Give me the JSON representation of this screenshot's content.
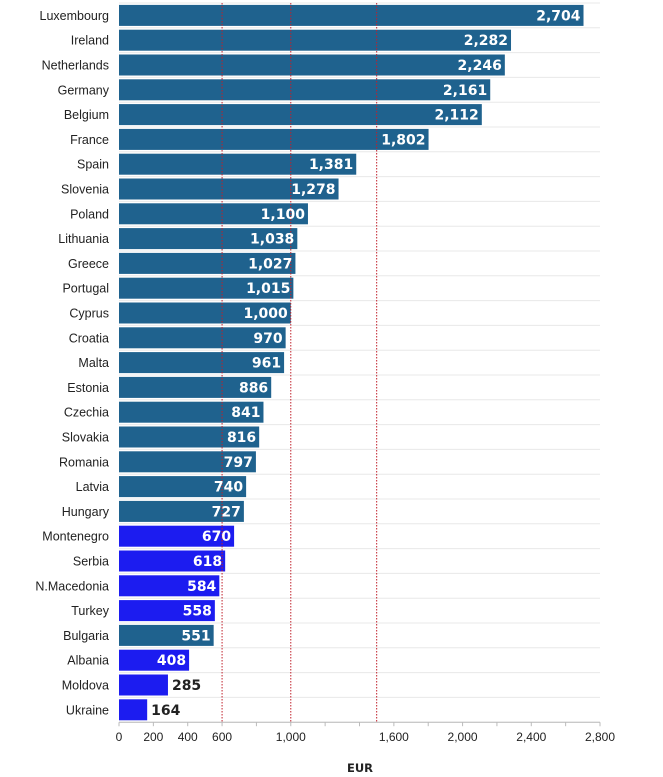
{
  "chart_data": {
    "type": "bar",
    "orientation": "horizontal",
    "xlabel": "EUR",
    "xlim": [
      0,
      2800
    ],
    "x_ticks": [
      0,
      200,
      400,
      600,
      1000,
      1600,
      2000,
      2400,
      2800
    ],
    "x_tick_labels": [
      "0",
      "200",
      "400",
      "600",
      "1,000",
      "1,600",
      "2,000",
      "2,400",
      "2,800"
    ],
    "reference_lines": [
      600,
      1000,
      1500
    ],
    "reference_line_color": "#c0202a",
    "grid": "horizontal row lines",
    "colors": {
      "eu": "#1f628e",
      "candidate": "#1c1cf0"
    },
    "categories": [
      "Luxembourg",
      "Ireland",
      "Netherlands",
      "Germany",
      "Belgium",
      "France",
      "Spain",
      "Slovenia",
      "Poland",
      "Lithuania",
      "Greece",
      "Portugal",
      "Cyprus",
      "Croatia",
      "Malta",
      "Estonia",
      "Czechia",
      "Slovakia",
      "Romania",
      "Latvia",
      "Hungary",
      "Montenegro",
      "Serbia",
      "N.Macedonia",
      "Turkey",
      "Bulgaria",
      "Albania",
      "Moldova",
      "Ukraine"
    ],
    "values": [
      2704,
      2282,
      2246,
      2161,
      2112,
      1802,
      1381,
      1278,
      1100,
      1038,
      1027,
      1015,
      1000,
      970,
      961,
      886,
      841,
      816,
      797,
      740,
      727,
      670,
      618,
      584,
      558,
      551,
      408,
      285,
      164
    ],
    "value_labels": [
      "2,704",
      "2,282",
      "2,246",
      "2,161",
      "2,112",
      "1,802",
      "1,381",
      "1,278",
      "1,100",
      "1,038",
      "1,027",
      "1,015",
      "1,000",
      "970",
      "961",
      "886",
      "841",
      "816",
      "797",
      "740",
      "727",
      "670",
      "618",
      "584",
      "558",
      "551",
      "408",
      "285",
      "164"
    ],
    "bar_group": [
      "eu",
      "eu",
      "eu",
      "eu",
      "eu",
      "eu",
      "eu",
      "eu",
      "eu",
      "eu",
      "eu",
      "eu",
      "eu",
      "eu",
      "eu",
      "eu",
      "eu",
      "eu",
      "eu",
      "eu",
      "eu",
      "candidate",
      "candidate",
      "candidate",
      "candidate",
      "eu",
      "candidate",
      "candidate",
      "candidate"
    ]
  }
}
